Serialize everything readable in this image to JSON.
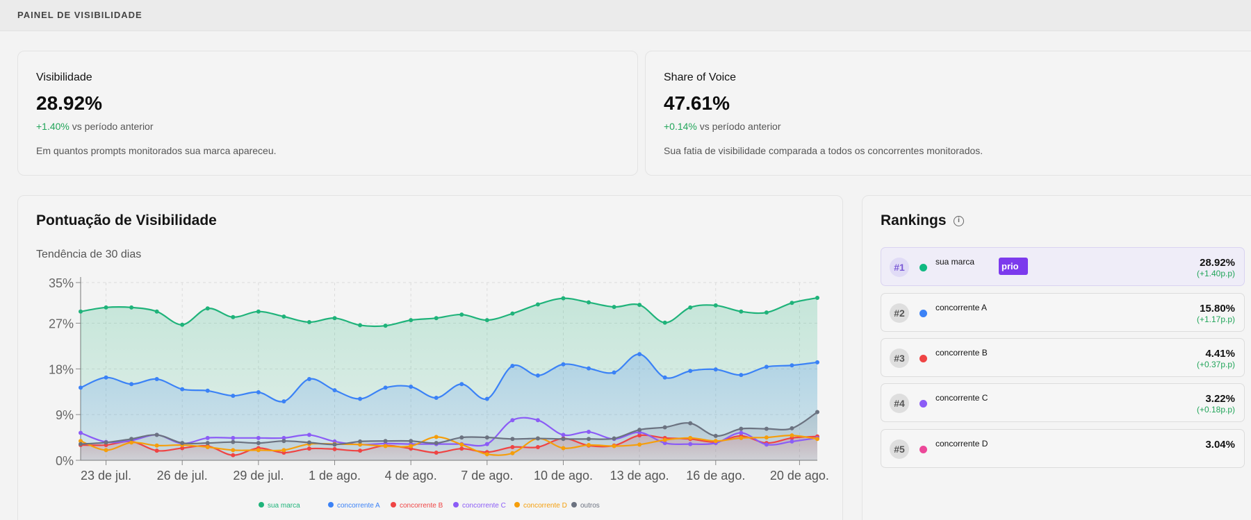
{
  "header": {
    "title": "PAINEL DE VISIBILIDADE"
  },
  "kpis": [
    {
      "label": "Visibilidade",
      "value": "28.92%",
      "delta": "+1.40%",
      "delta_suffix": "vs período anterior",
      "description": "Em quantos prompts monitorados sua marca apareceu."
    },
    {
      "label": "Share of Voice",
      "value": "47.61%",
      "delta": "+0.14%",
      "delta_suffix": "vs período anterior",
      "description": "Sua fatia de visibilidade comparada a todos os concorrentes monitorados."
    }
  ],
  "chart": {
    "title": "Pontuação de Visibilidade",
    "subtitle": "Tendência de 30 dias"
  },
  "rankings": {
    "title": "Rankings",
    "items": [
      {
        "rank": "#1",
        "name": "sua marca",
        "badge": "prio",
        "value": "28.92%",
        "change": "(+1.40p.p)",
        "color": "#10b981"
      },
      {
        "rank": "#2",
        "name": "concorrente A",
        "value": "15.80%",
        "change": "(+1.17p.p)",
        "color": "#3b82f6"
      },
      {
        "rank": "#3",
        "name": "concorrente B",
        "value": "4.41%",
        "change": "(+0.37p.p)",
        "color": "#ef4444"
      },
      {
        "rank": "#4",
        "name": "concorrente C",
        "value": "3.22%",
        "change": "(+0.18p.p)",
        "color": "#8b5cf6"
      },
      {
        "rank": "#5",
        "name": "concorrente D",
        "value": "3.04%",
        "change": "",
        "color": "#ec4899"
      }
    ]
  },
  "chart_data": {
    "type": "area",
    "ylim": [
      0,
      35
    ],
    "y_ticks": [
      0,
      9,
      18,
      27,
      35
    ],
    "y_tick_labels": [
      "0%",
      "9%",
      "18%",
      "27%",
      "35%"
    ],
    "x_ticks": [
      "23 de jul.",
      "26 de jul.",
      "29 de jul.",
      "1 de ago.",
      "4 de ago.",
      "7 de ago.",
      "10 de ago.",
      "13 de ago.",
      "16 de ago.",
      "20 de ago."
    ],
    "x_tick_positions": [
      1,
      4,
      7,
      10,
      13,
      16,
      19,
      22,
      25,
      28.3
    ],
    "grid": true,
    "legend_position": "bottom",
    "series": [
      {
        "name": "sua marca",
        "color": "#1fb37a",
        "fill": true,
        "values": [
          29.3,
          30.1,
          30.1,
          29.3,
          26.7,
          29.9,
          28.2,
          29.3,
          28.3,
          27.2,
          28.0,
          26.6,
          26.5,
          27.6,
          28.0,
          28.7,
          27.6,
          28.9,
          30.7,
          31.9,
          31.1,
          30.2,
          30.6,
          27.1,
          30.1,
          30.5,
          29.3,
          29.1,
          31.0,
          32.0
        ]
      },
      {
        "name": "concorrente A",
        "color": "#3b82f6",
        "fill": true,
        "values": [
          14.3,
          16.3,
          15.0,
          16.0,
          14.0,
          13.7,
          12.7,
          13.4,
          11.6,
          16.0,
          13.8,
          12.1,
          14.3,
          14.5,
          12.3,
          15.0,
          12.1,
          18.6,
          16.7,
          18.9,
          18.1,
          17.3,
          20.9,
          16.3,
          17.6,
          17.9,
          16.8,
          18.4,
          18.7,
          19.3
        ]
      },
      {
        "name": "concorrente B",
        "color": "#ef4444",
        "fill": true,
        "values": [
          3.0,
          3.0,
          3.7,
          1.9,
          2.4,
          2.8,
          1.0,
          2.4,
          1.5,
          2.3,
          2.2,
          1.9,
          2.9,
          2.3,
          1.5,
          2.3,
          1.6,
          2.6,
          2.6,
          4.3,
          2.9,
          2.9,
          4.9,
          4.4,
          4.2,
          3.6,
          4.8,
          3.4,
          4.4,
          4.7
        ]
      },
      {
        "name": "concorrente C",
        "color": "#8b5cf6",
        "fill": false,
        "values": [
          5.4,
          3.6,
          3.9,
          5.0,
          3.3,
          4.4,
          4.4,
          4.4,
          4.4,
          5.0,
          3.7,
          3.1,
          3.3,
          3.2,
          3.2,
          3.2,
          3.2,
          7.9,
          7.9,
          5.0,
          5.6,
          4.2,
          5.5,
          3.4,
          3.2,
          3.4,
          5.4,
          3.1,
          3.7,
          4.4
        ]
      },
      {
        "name": "concorrente D",
        "color": "#f59e0b",
        "fill": false,
        "values": [
          3.8,
          2.0,
          3.5,
          2.9,
          3.0,
          2.6,
          2.0,
          2.0,
          2.0,
          3.2,
          3.2,
          3.1,
          2.8,
          2.8,
          4.6,
          3.1,
          1.2,
          1.4,
          4.3,
          2.4,
          3.0,
          2.8,
          3.1,
          4.0,
          4.4,
          3.8,
          4.4,
          4.5,
          4.9,
          4.2
        ]
      },
      {
        "name": "outros",
        "color": "#6b7280",
        "fill": true,
        "values": [
          3.2,
          3.5,
          4.2,
          5.0,
          3.4,
          3.4,
          3.6,
          3.4,
          3.8,
          3.5,
          3.1,
          3.7,
          3.8,
          3.8,
          3.4,
          4.5,
          4.5,
          4.2,
          4.3,
          4.2,
          4.2,
          4.3,
          6.0,
          6.5,
          7.3,
          4.8,
          6.2,
          6.2,
          6.3,
          9.5
        ]
      }
    ]
  }
}
